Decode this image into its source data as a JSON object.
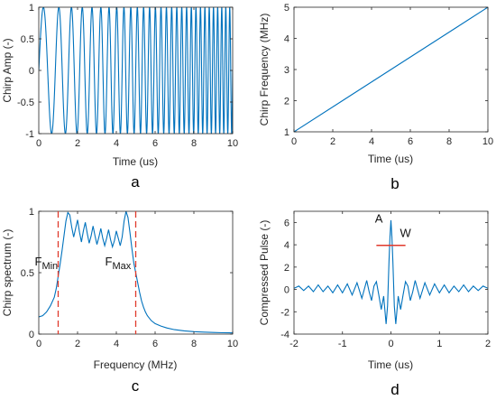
{
  "chart_data": [
    {
      "type": "line",
      "panel_label": "a",
      "xlabel": "Time (us)",
      "ylabel": "Chirp Amp (-)",
      "xlim": [
        0,
        10
      ],
      "ylim": [
        -1,
        1
      ],
      "xticks": [
        "0",
        "2",
        "4",
        "6",
        "8",
        "10"
      ],
      "yticks": [
        "-1",
        "-0.5",
        "0",
        "0.5",
        "1"
      ],
      "series": [
        {
          "type": "chirp_sine",
          "f0_mhz": 1,
          "f1_mhz": 5,
          "duration_us": 10,
          "amplitude": 1
        }
      ],
      "color": "#0072BD",
      "grid": false
    },
    {
      "type": "line",
      "panel_label": "b",
      "xlabel": "Time (us)",
      "ylabel": "Chirp Frequency (MHz)",
      "xlim": [
        0,
        10
      ],
      "ylim": [
        1,
        5
      ],
      "xticks": [
        "0",
        "2",
        "4",
        "6",
        "8",
        "10"
      ],
      "yticks": [
        "1",
        "2",
        "3",
        "4",
        "5"
      ],
      "series": [
        {
          "x": [
            0,
            10
          ],
          "y": [
            1,
            5
          ]
        }
      ],
      "color": "#0072BD",
      "grid": false
    },
    {
      "type": "line",
      "panel_label": "c",
      "xlabel": "Frequency (MHz)",
      "ylabel": "Chirp spectrum (-)",
      "xlim": [
        0,
        10
      ],
      "ylim": [
        0,
        1
      ],
      "xticks": [
        "0",
        "2",
        "4",
        "6",
        "8",
        "10"
      ],
      "yticks": [
        "0",
        "0.5",
        "1"
      ],
      "series": [
        {
          "x": [
            0,
            0.2,
            0.4,
            0.6,
            0.8,
            0.9,
            1.0,
            1.1,
            1.2,
            1.3,
            1.4,
            1.5,
            1.6,
            1.7,
            1.8,
            1.9,
            2.0,
            2.1,
            2.2,
            2.3,
            2.4,
            2.5,
            2.6,
            2.7,
            2.8,
            2.9,
            3.0,
            3.1,
            3.2,
            3.3,
            3.4,
            3.5,
            3.6,
            3.7,
            3.8,
            3.9,
            4.0,
            4.1,
            4.2,
            4.3,
            4.4,
            4.5,
            4.6,
            4.7,
            4.8,
            4.9,
            5.0,
            5.1,
            5.2,
            5.3,
            5.4,
            5.5,
            5.6,
            5.8,
            6.0,
            6.3,
            6.6,
            7.0,
            7.5,
            8.0,
            8.5,
            9.0,
            9.5,
            10.0
          ],
          "y": [
            0.14,
            0.15,
            0.18,
            0.23,
            0.3,
            0.37,
            0.47,
            0.57,
            0.68,
            0.8,
            0.92,
            0.99,
            0.97,
            0.87,
            0.79,
            0.86,
            0.93,
            0.83,
            0.75,
            0.84,
            0.91,
            0.82,
            0.74,
            0.8,
            0.88,
            0.8,
            0.73,
            0.79,
            0.86,
            0.78,
            0.72,
            0.78,
            0.85,
            0.77,
            0.71,
            0.76,
            0.84,
            0.78,
            0.72,
            0.79,
            0.92,
            1.0,
            0.95,
            0.83,
            0.7,
            0.58,
            0.5,
            0.42,
            0.34,
            0.27,
            0.22,
            0.18,
            0.15,
            0.11,
            0.085,
            0.065,
            0.05,
            0.036,
            0.026,
            0.02,
            0.016,
            0.013,
            0.011,
            0.01
          ]
        }
      ],
      "markers": [
        {
          "label": "F",
          "subscript": "Min",
          "x": 1.0
        },
        {
          "label": "F",
          "subscript": "Max",
          "x": 5.0
        }
      ],
      "marker_color": "#E0392B",
      "color": "#0072BD",
      "grid": false
    },
    {
      "type": "line",
      "panel_label": "d",
      "xlabel": "Time (us)",
      "ylabel": "Compressed Pulse (-)",
      "xlim": [
        -2,
        2
      ],
      "ylim": [
        -4,
        7
      ],
      "xticks": [
        "-2",
        "-1",
        "0",
        "1",
        "2"
      ],
      "yticks": [
        "-4",
        "-2",
        "0",
        "2",
        "4",
        "6"
      ],
      "series": [
        {
          "x": [
            -2.0,
            -1.9,
            -1.8,
            -1.7,
            -1.6,
            -1.5,
            -1.4,
            -1.3,
            -1.2,
            -1.1,
            -1.0,
            -0.9,
            -0.8,
            -0.7,
            -0.6,
            -0.5,
            -0.45,
            -0.4,
            -0.35,
            -0.3,
            -0.25,
            -0.2,
            -0.15,
            -0.1,
            -0.07,
            -0.04,
            -0.02,
            0.0,
            0.02,
            0.04,
            0.07,
            0.1,
            0.15,
            0.2,
            0.25,
            0.3,
            0.35,
            0.4,
            0.45,
            0.5,
            0.6,
            0.7,
            0.8,
            0.9,
            1.0,
            1.1,
            1.2,
            1.3,
            1.4,
            1.5,
            1.6,
            1.7,
            1.8,
            1.9,
            2.0
          ],
          "y": [
            0.1,
            0.3,
            -0.1,
            0.3,
            -0.2,
            0.4,
            -0.2,
            0.3,
            -0.3,
            0.4,
            -0.3,
            0.5,
            -0.5,
            0.6,
            -0.8,
            0.8,
            -0.2,
            -1.0,
            0.3,
            0.7,
            -0.5,
            -1.8,
            -0.6,
            -3.1,
            -1.5,
            2.5,
            4.7,
            6.2,
            4.7,
            2.5,
            -1.5,
            -3.1,
            -0.6,
            -1.8,
            -0.5,
            0.7,
            0.3,
            -1.0,
            -0.2,
            0.8,
            -0.8,
            0.6,
            -0.5,
            0.5,
            -0.3,
            0.4,
            -0.3,
            0.3,
            -0.2,
            0.4,
            -0.2,
            0.3,
            -0.1,
            0.3,
            0.1
          ]
        }
      ],
      "annotations": [
        {
          "text": "A",
          "x": -0.25,
          "y": 6.0
        },
        {
          "text": "W",
          "x": 0.3,
          "y": 4.7
        }
      ],
      "width_bar": {
        "x": [
          -0.3,
          0.3
        ],
        "y": 3.95
      },
      "marker_color": "#E0392B",
      "color": "#0072BD",
      "grid": false
    }
  ]
}
